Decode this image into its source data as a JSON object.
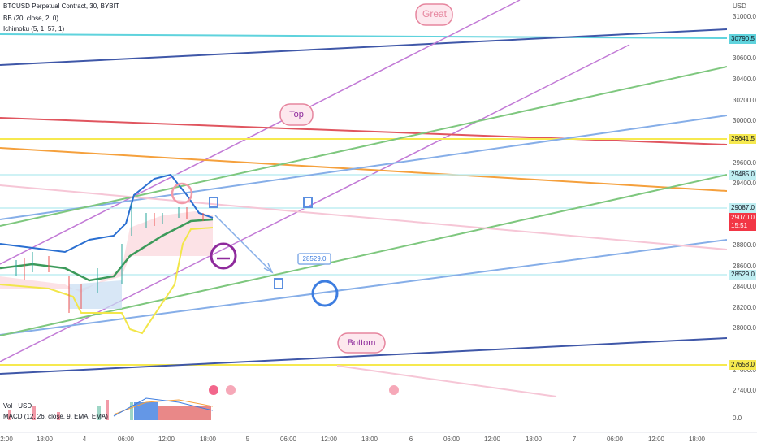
{
  "header": {
    "symbol": "BTCUSD Perpetual Contract, 30, BYBIT",
    "indicators": [
      "BB (20, close, 2, 0)",
      "Ichimoku (5, 1, 57, 1)"
    ]
  },
  "lower": {
    "volume": "Vol · USD",
    "macd": "MACD (12, 26, close, 9, EMA, EMA)"
  },
  "price_axis": {
    "unit": "USD",
    "ticks": [
      "31000.0",
      "30600.0",
      "30400.0",
      "30200.0",
      "30000.0",
      "29600.0",
      "29400.0",
      "28800.0",
      "28600.0",
      "28400.0",
      "28200.0",
      "28000.0",
      "27600.0",
      "27400.0"
    ],
    "levels": [
      "30790.5",
      "29641.5",
      "29485.0",
      "29087.0",
      "28529.0",
      "27658.0"
    ],
    "last_price": "29070.0",
    "countdown": "15:51",
    "volume_zero": "0.0"
  },
  "time_axis": [
    "2:00",
    "18:00",
    "4",
    "06:00",
    "12:00",
    "18:00",
    "5",
    "06:00",
    "12:00",
    "18:00",
    "6",
    "06:00",
    "12:00",
    "18:00",
    "7",
    "06:00",
    "12:00",
    "18:00"
  ],
  "annotations": {
    "great": "Great",
    "top": "Top",
    "bottom": "Bottom",
    "target": "28529.0"
  }
}
